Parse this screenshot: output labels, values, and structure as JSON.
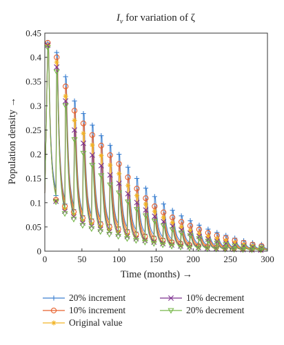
{
  "chart_data": {
    "type": "line",
    "title_main": "I",
    "title_sub": "v",
    "title_rest": " for variation of ζ",
    "xlabel": "Time (months) →",
    "ylabel": "Population density →",
    "xlim": [
      0,
      300
    ],
    "ylim": [
      0,
      0.45
    ],
    "xticks": [
      "0",
      "50",
      "100",
      "150",
      "200",
      "250",
      "300"
    ],
    "yticks": [
      "0",
      "0.05",
      "0.1",
      "0.15",
      "0.2",
      "0.25",
      "0.3",
      "0.35",
      "0.4",
      "0.45"
    ],
    "grid": false,
    "legend_position": "bottom",
    "period_months": 12,
    "series": [
      {
        "name": "20% increment",
        "color": "#3a7fd0",
        "marker": "plus",
        "peaks": [
          [
            4,
            0.43
          ],
          [
            16,
            0.41
          ],
          [
            28,
            0.36
          ],
          [
            40,
            0.31
          ],
          [
            100,
            0.2
          ],
          [
            150,
            0.11
          ],
          [
            200,
            0.06
          ],
          [
            250,
            0.03
          ],
          [
            300,
            0.012
          ]
        ],
        "troughs": [
          [
            12,
            0.12
          ],
          [
            24,
            0.1
          ],
          [
            36,
            0.09
          ],
          [
            48,
            0.075
          ],
          [
            100,
            0.05
          ],
          [
            150,
            0.03
          ],
          [
            200,
            0.015
          ],
          [
            300,
            0.004
          ]
        ]
      },
      {
        "name": "10% increment",
        "color": "#e8602c",
        "marker": "circle",
        "peaks": [
          [
            4,
            0.43
          ],
          [
            16,
            0.4
          ],
          [
            28,
            0.34
          ],
          [
            40,
            0.29
          ],
          [
            100,
            0.18
          ],
          [
            150,
            0.09
          ],
          [
            200,
            0.05
          ],
          [
            250,
            0.025
          ],
          [
            300,
            0.009
          ]
        ],
        "troughs": [
          [
            12,
            0.11
          ],
          [
            24,
            0.095
          ],
          [
            36,
            0.085
          ],
          [
            48,
            0.07
          ],
          [
            100,
            0.045
          ],
          [
            150,
            0.025
          ],
          [
            200,
            0.012
          ],
          [
            300,
            0.003
          ]
        ]
      },
      {
        "name": "Original value",
        "color": "#f2b324",
        "marker": "star",
        "peaks": [
          [
            4,
            0.425
          ],
          [
            16,
            0.39
          ],
          [
            28,
            0.32
          ],
          [
            40,
            0.27
          ],
          [
            100,
            0.16
          ],
          [
            150,
            0.08
          ],
          [
            200,
            0.04
          ],
          [
            250,
            0.02
          ],
          [
            300,
            0.007
          ]
        ],
        "troughs": [
          [
            12,
            0.11
          ],
          [
            24,
            0.09
          ],
          [
            36,
            0.08
          ],
          [
            48,
            0.065
          ],
          [
            100,
            0.04
          ],
          [
            150,
            0.02
          ],
          [
            200,
            0.01
          ],
          [
            300,
            0.003
          ]
        ]
      },
      {
        "name": "10% decrement",
        "color": "#7b2d8e",
        "marker": "x",
        "peaks": [
          [
            4,
            0.425
          ],
          [
            16,
            0.38
          ],
          [
            28,
            0.31
          ],
          [
            40,
            0.25
          ],
          [
            100,
            0.14
          ],
          [
            150,
            0.07
          ],
          [
            200,
            0.035
          ],
          [
            250,
            0.015
          ],
          [
            300,
            0.006
          ]
        ],
        "troughs": [
          [
            12,
            0.11
          ],
          [
            24,
            0.085
          ],
          [
            36,
            0.075
          ],
          [
            48,
            0.06
          ],
          [
            100,
            0.035
          ],
          [
            150,
            0.018
          ],
          [
            200,
            0.008
          ],
          [
            300,
            0.002
          ]
        ]
      },
      {
        "name": "20% decrement",
        "color": "#77b84a",
        "marker": "triangle-down",
        "peaks": [
          [
            4,
            0.42
          ],
          [
            16,
            0.37
          ],
          [
            28,
            0.3
          ],
          [
            40,
            0.23
          ],
          [
            100,
            0.12
          ],
          [
            150,
            0.06
          ],
          [
            200,
            0.03
          ],
          [
            250,
            0.012
          ],
          [
            300,
            0.005
          ]
        ],
        "troughs": [
          [
            12,
            0.11
          ],
          [
            24,
            0.08
          ],
          [
            36,
            0.07
          ],
          [
            48,
            0.055
          ],
          [
            100,
            0.03
          ],
          [
            150,
            0.015
          ],
          [
            200,
            0.006
          ],
          [
            300,
            0.002
          ]
        ]
      }
    ]
  }
}
